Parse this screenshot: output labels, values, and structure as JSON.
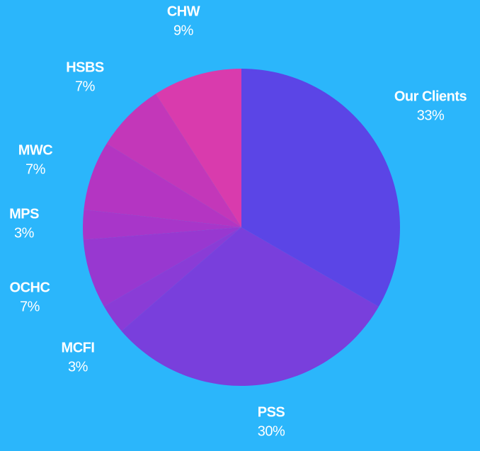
{
  "chart_data": {
    "type": "pie",
    "categories": [
      "Our Clients",
      "PSS",
      "MCFI",
      "OCHC",
      "MPS",
      "MWC",
      "HSBS",
      "CHW"
    ],
    "values": [
      33,
      30,
      3,
      7,
      3,
      7,
      7,
      9
    ],
    "value_labels": [
      "33%",
      "30%",
      "3%",
      "7%",
      "3%",
      "7%",
      "7%",
      "9%"
    ],
    "colors": [
      "#5b45e6",
      "#793fdc",
      "#8a3cd6",
      "#9838d0",
      "#a836c9",
      "#b435c2",
      "#c337b9",
      "#d93bad"
    ]
  }
}
